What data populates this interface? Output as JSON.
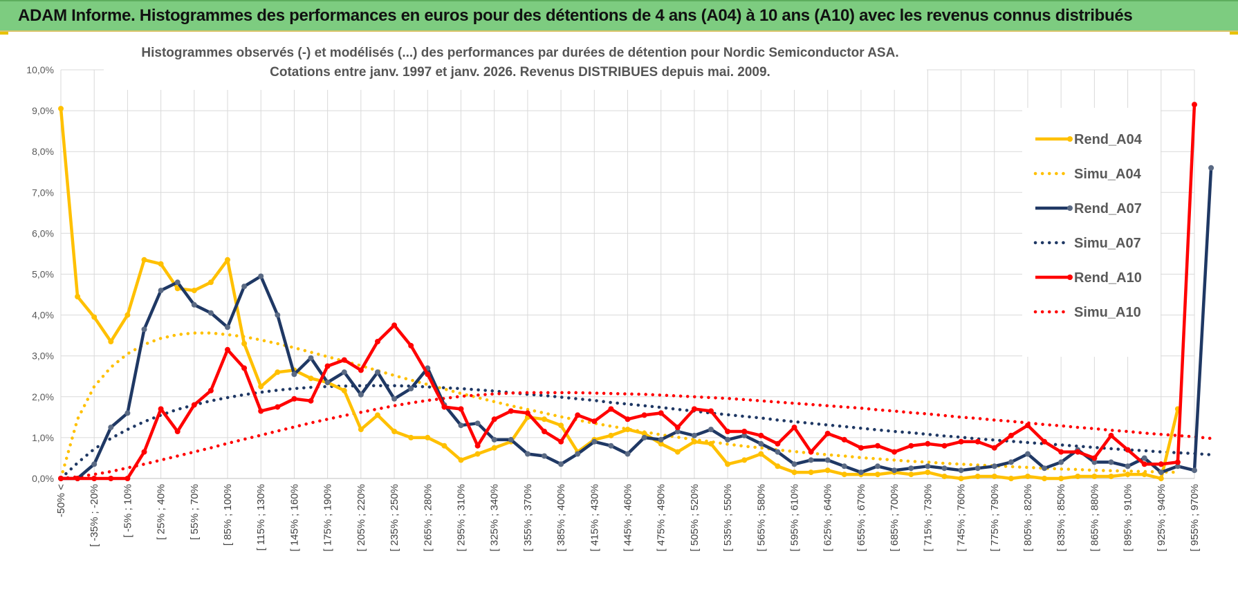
{
  "banner": {
    "title": "ADAM Informe. Histogrammes des performances en euros pour des détentions de 4 ans (A04) à 10 ans (A10) avec les revenus connus distribués"
  },
  "chart_data": {
    "type": "line",
    "title_line1": "Histogrammes observés (-) et modélisés (...) des performances par durées de détention pour Nordic Semiconductor ASA.",
    "title_line2": "Cotations entre janv. 1997 et janv. 2026. Revenus DISTRIBUES depuis mai. 2009.",
    "xlabel": "",
    "ylabel": "",
    "ylim": [
      0,
      10
    ],
    "yticks": [
      "0,0%",
      "1,0%",
      "2,0%",
      "3,0%",
      "4,0%",
      "5,0%",
      "6,0%",
      "7,0%",
      "8,0%",
      "9,0%",
      "10,0%"
    ],
    "grid": true,
    "legend_position": "right",
    "x_labels": [
      "-50% <",
      "[ -35% ; -20%",
      "[ -5% ; 10%",
      "[ 25% ; 40%",
      "[ 55% ; 70%",
      "[ 85% ; 100%",
      "[ 115% ; 130%",
      "[ 145% ; 160%",
      "[ 175% ; 190%",
      "[ 205% ; 220%",
      "[ 235% ; 250%",
      "[ 265% ; 280%",
      "[ 295% ; 310%",
      "[ 325% ; 340%",
      "[ 355% ; 370%",
      "[ 385% ; 400%",
      "[ 415% ; 430%",
      "[ 445% ; 460%",
      "[ 475% ; 490%",
      "[ 505% ; 520%",
      "[ 535% ; 550%",
      "[ 565% ; 580%",
      "[ 595% ; 610%",
      "[ 625% ; 640%",
      "[ 655% ; 670%",
      "[ 685% ; 700%",
      "[ 715% ; 730%",
      "[ 745% ; 760%",
      "[ 775% ; 790%",
      "[ 805% ; 820%",
      "[ 835% ; 850%",
      "[ 865% ; 880%",
      "[ 895% ; 910%",
      "[ 925% ; 940%",
      "[ 955% ; 970%"
    ],
    "series": [
      {
        "name": "Rend_A04",
        "style": "solid",
        "color": "#ffc000",
        "values": [
          9.05,
          4.45,
          3.95,
          3.35,
          4.0,
          5.35,
          5.25,
          4.65,
          4.6,
          4.8,
          5.35,
          3.3,
          2.25,
          2.6,
          2.65,
          2.45,
          2.35,
          2.15,
          1.2,
          1.55,
          1.15,
          1.0,
          1.0,
          0.8,
          0.45,
          0.6,
          0.75,
          0.9,
          1.5,
          1.45,
          1.3,
          0.65,
          0.95,
          1.05,
          1.2,
          1.1,
          0.85,
          0.65,
          0.9,
          0.85,
          0.35,
          0.45,
          0.6,
          0.3,
          0.15,
          0.15,
          0.2,
          0.1,
          0.1,
          0.1,
          0.15,
          0.1,
          0.15,
          0.05,
          0.0,
          0.05,
          0.05,
          0.0,
          0.05,
          0.0,
          0.0,
          0.05,
          0.05,
          0.05,
          0.1,
          0.1,
          0.0,
          1.7
        ]
      },
      {
        "name": "Simu_A04",
        "style": "dotted",
        "color": "#ffc000",
        "values": [
          0.0,
          1.45,
          2.25,
          2.72,
          3.05,
          3.28,
          3.43,
          3.52,
          3.56,
          3.56,
          3.52,
          3.47,
          3.39,
          3.3,
          3.2,
          3.09,
          2.98,
          2.87,
          2.76,
          2.64,
          2.52,
          2.41,
          2.3,
          2.19,
          2.08,
          1.98,
          1.88,
          1.78,
          1.69,
          1.6,
          1.51,
          1.43,
          1.35,
          1.28,
          1.21,
          1.14,
          1.07,
          1.01,
          0.95,
          0.9,
          0.84,
          0.79,
          0.75,
          0.7,
          0.66,
          0.62,
          0.58,
          0.55,
          0.51,
          0.48,
          0.45,
          0.42,
          0.4,
          0.37,
          0.35,
          0.33,
          0.31,
          0.29,
          0.27,
          0.25,
          0.23,
          0.22,
          0.2,
          0.19,
          0.18,
          0.17,
          0.16,
          0.15
        ]
      },
      {
        "name": "Rend_A07",
        "style": "solid",
        "color": "#1f3864",
        "values": [
          0.0,
          0.0,
          0.35,
          1.25,
          1.6,
          3.65,
          4.6,
          4.8,
          4.25,
          4.05,
          3.7,
          4.7,
          4.95,
          4.0,
          2.55,
          2.95,
          2.35,
          2.6,
          2.05,
          2.6,
          1.95,
          2.2,
          2.7,
          1.8,
          1.3,
          1.35,
          0.95,
          0.95,
          0.6,
          0.55,
          0.35,
          0.6,
          0.9,
          0.8,
          0.6,
          1.0,
          0.95,
          1.15,
          1.05,
          1.2,
          0.95,
          1.05,
          0.85,
          0.65,
          0.35,
          0.45,
          0.45,
          0.3,
          0.15,
          0.3,
          0.2,
          0.25,
          0.3,
          0.25,
          0.2,
          0.25,
          0.3,
          0.4,
          0.6,
          0.25,
          0.4,
          0.7,
          0.4,
          0.4,
          0.3,
          0.5,
          0.15,
          0.3,
          0.2,
          7.6
        ]
      },
      {
        "name": "Simu_A07",
        "style": "dotted",
        "color": "#1f3864",
        "values": [
          0.0,
          0.38,
          0.72,
          0.98,
          1.2,
          1.39,
          1.55,
          1.69,
          1.8,
          1.9,
          1.98,
          2.05,
          2.11,
          2.16,
          2.2,
          2.23,
          2.25,
          2.26,
          2.27,
          2.27,
          2.27,
          2.26,
          2.24,
          2.22,
          2.2,
          2.17,
          2.14,
          2.1,
          2.06,
          2.03,
          1.99,
          1.95,
          1.91,
          1.86,
          1.82,
          1.78,
          1.74,
          1.69,
          1.65,
          1.6,
          1.56,
          1.52,
          1.48,
          1.43,
          1.39,
          1.35,
          1.31,
          1.27,
          1.23,
          1.19,
          1.15,
          1.12,
          1.08,
          1.04,
          1.01,
          0.97,
          0.94,
          0.91,
          0.88,
          0.85,
          0.82,
          0.79,
          0.76,
          0.73,
          0.7,
          0.68,
          0.65,
          0.63,
          0.61,
          0.58
        ]
      },
      {
        "name": "Rend_A10",
        "style": "solid",
        "color": "#ff0000",
        "values": [
          0.0,
          0.0,
          0.0,
          0.0,
          0.0,
          0.65,
          1.7,
          1.15,
          1.8,
          2.15,
          3.15,
          2.7,
          1.65,
          1.75,
          1.95,
          1.9,
          2.75,
          2.9,
          2.65,
          3.35,
          3.75,
          3.25,
          2.55,
          1.75,
          1.7,
          0.8,
          1.45,
          1.65,
          1.6,
          1.15,
          0.9,
          1.55,
          1.4,
          1.7,
          1.45,
          1.55,
          1.6,
          1.25,
          1.7,
          1.65,
          1.15,
          1.15,
          1.05,
          0.85,
          1.25,
          0.65,
          1.1,
          0.95,
          0.75,
          0.8,
          0.65,
          0.8,
          0.85,
          0.8,
          0.9,
          0.9,
          0.75,
          1.05,
          1.3,
          0.9,
          0.65,
          0.65,
          0.5,
          1.05,
          0.7,
          0.35,
          0.35,
          0.4,
          9.15
        ]
      },
      {
        "name": "Simu_A10",
        "style": "dotted",
        "color": "#ff0000",
        "values": [
          0.0,
          0.04,
          0.1,
          0.17,
          0.26,
          0.35,
          0.45,
          0.55,
          0.65,
          0.75,
          0.86,
          0.96,
          1.06,
          1.16,
          1.26,
          1.36,
          1.45,
          1.54,
          1.62,
          1.7,
          1.78,
          1.85,
          1.91,
          1.96,
          2.01,
          2.04,
          2.07,
          2.09,
          2.1,
          2.1,
          2.1,
          2.1,
          2.09,
          2.08,
          2.07,
          2.06,
          2.04,
          2.02,
          2.0,
          1.98,
          1.96,
          1.93,
          1.9,
          1.87,
          1.84,
          1.81,
          1.78,
          1.75,
          1.72,
          1.68,
          1.65,
          1.61,
          1.58,
          1.54,
          1.5,
          1.47,
          1.43,
          1.4,
          1.36,
          1.32,
          1.29,
          1.25,
          1.22,
          1.18,
          1.15,
          1.11,
          1.08,
          1.05,
          1.02,
          0.98
        ]
      }
    ]
  }
}
